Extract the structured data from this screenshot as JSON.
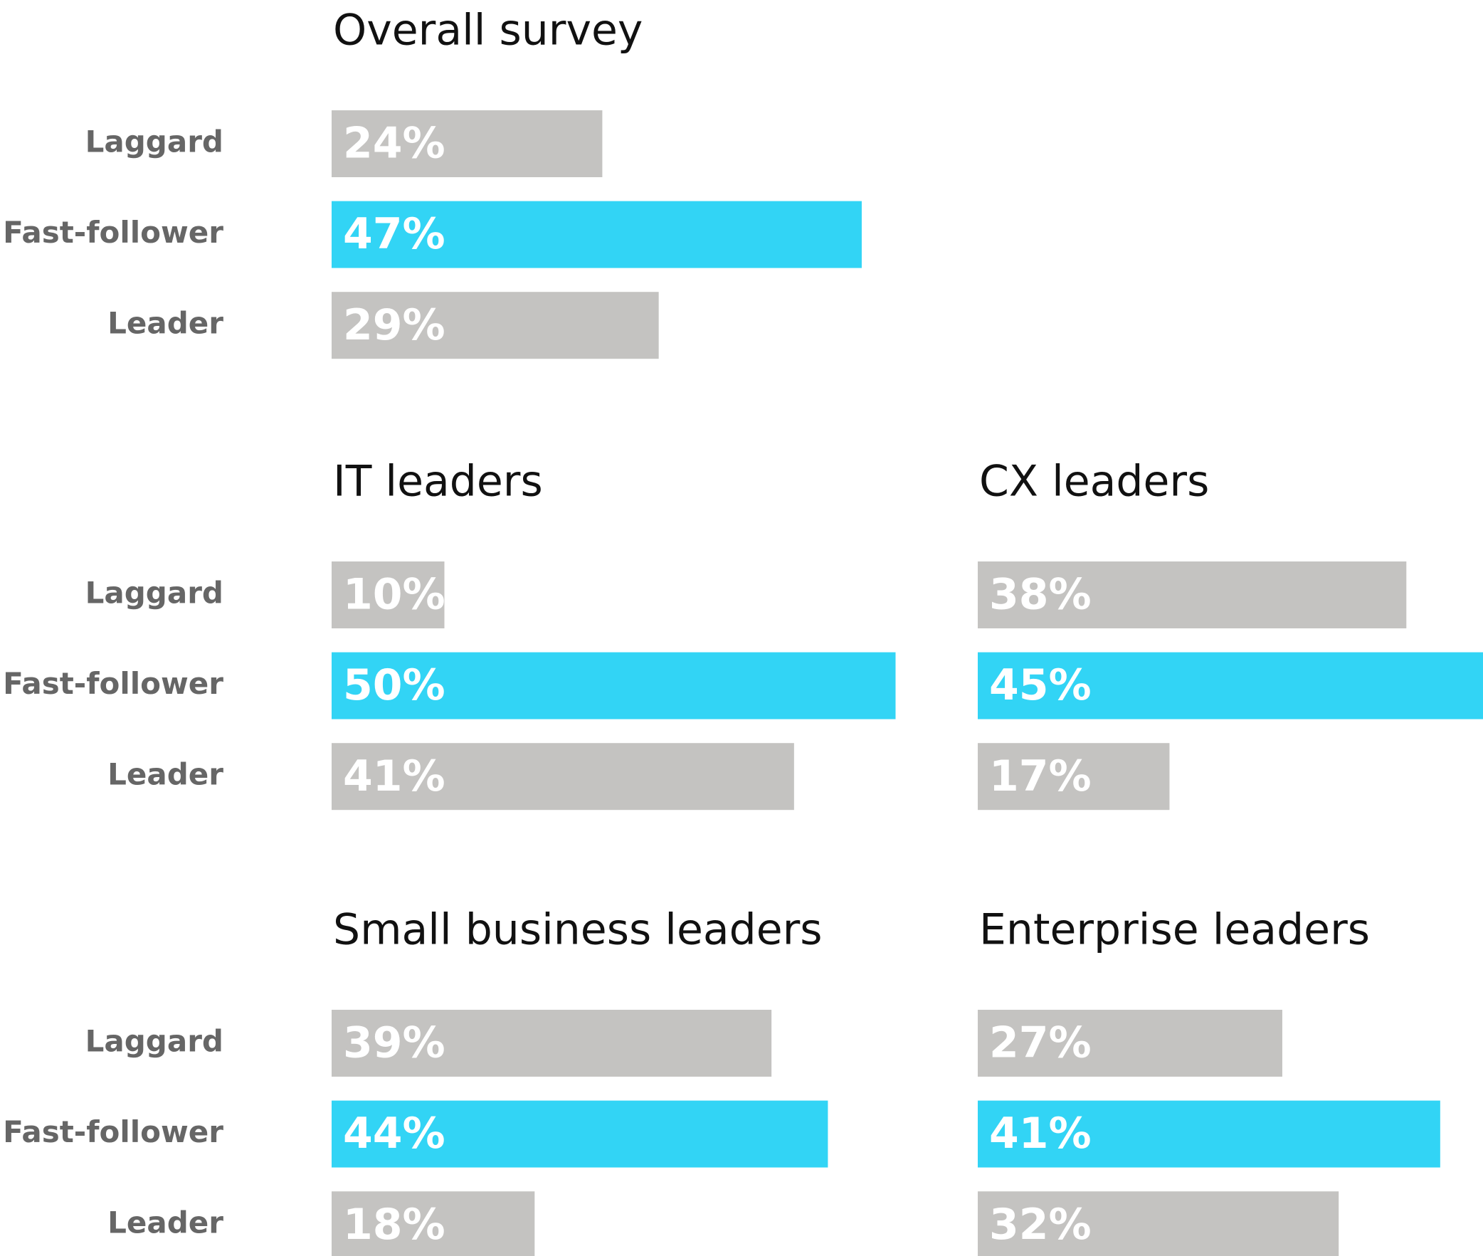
{
  "chart_data": [
    {
      "type": "bar",
      "title": "Overall survey",
      "categories": [
        "Laggard",
        "Fast-follower",
        "Leader"
      ],
      "values": [
        24,
        47,
        29
      ],
      "value_labels": [
        "24%",
        "47%",
        "29%"
      ],
      "colors": [
        "#c4c3c1",
        "#32d4f5",
        "#c4c3c1"
      ]
    },
    {
      "type": "bar",
      "title": "IT leaders",
      "categories": [
        "Laggard",
        "Fast-follower",
        "Leader"
      ],
      "values": [
        10,
        50,
        41
      ],
      "value_labels": [
        "10%",
        "50%",
        "41%"
      ],
      "colors": [
        "#c4c3c1",
        "#32d4f5",
        "#c4c3c1"
      ]
    },
    {
      "type": "bar",
      "title": "CX leaders",
      "values": [
        38,
        45,
        17
      ],
      "value_labels": [
        "38%",
        "45%",
        "17%"
      ],
      "colors": [
        "#c4c3c1",
        "#32d4f5",
        "#c4c3c1"
      ]
    },
    {
      "type": "bar",
      "title": "Small business leaders",
      "categories": [
        "Laggard",
        "Fast-follower",
        "Leader"
      ],
      "values": [
        39,
        44,
        18
      ],
      "value_labels": [
        "39%",
        "44%",
        "18%"
      ],
      "colors": [
        "#c4c3c1",
        "#32d4f5",
        "#c4c3c1"
      ]
    },
    {
      "type": "bar",
      "title": "Enterprise leaders",
      "values": [
        27,
        41,
        32
      ],
      "value_labels": [
        "27%",
        "41%",
        "32%"
      ],
      "colors": [
        "#c4c3c1",
        "#32d4f5",
        "#c4c3c1"
      ]
    }
  ]
}
